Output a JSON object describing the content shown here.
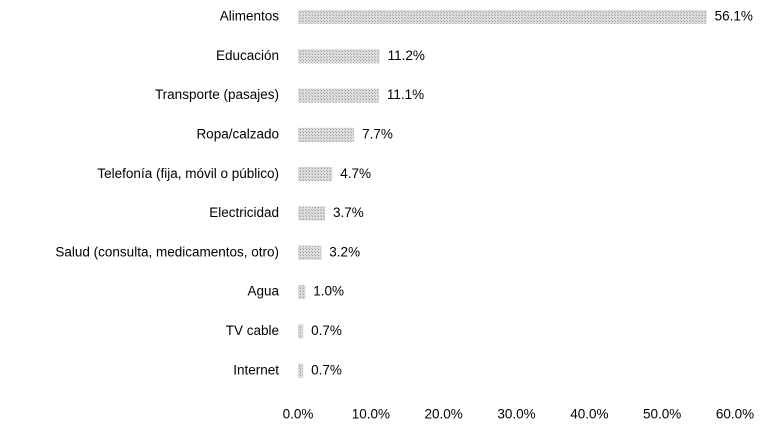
{
  "chart_data": {
    "type": "bar",
    "orientation": "horizontal",
    "categories": [
      "Alimentos",
      "Educación",
      "Transporte (pasajes)",
      "Ropa/calzado",
      "Telefonía (fija, móvil o público)",
      "Electricidad",
      "Salud (consulta, medicamentos, otro)",
      "Agua",
      "TV cable",
      "Internet"
    ],
    "values": [
      56.1,
      11.2,
      11.1,
      7.7,
      4.7,
      3.7,
      3.2,
      1.0,
      0.7,
      0.7
    ],
    "value_labels": [
      "56.1%",
      "11.2%",
      "11.1%",
      "7.7%",
      "4.7%",
      "3.7%",
      "3.2%",
      "1.0%",
      "0.7%",
      "0.7%"
    ],
    "color": "#c4c4c4",
    "xlim": [
      0,
      60
    ],
    "xticks": [
      {
        "value": 0,
        "label": "0.0%"
      },
      {
        "value": 10,
        "label": "10.0%"
      },
      {
        "value": 20,
        "label": "20.0%"
      },
      {
        "value": 30,
        "label": "30.0%"
      },
      {
        "value": 40,
        "label": "40.0%"
      },
      {
        "value": 50,
        "label": "50.0%"
      },
      {
        "value": 60,
        "label": "60.0%"
      }
    ],
    "grid": false
  }
}
